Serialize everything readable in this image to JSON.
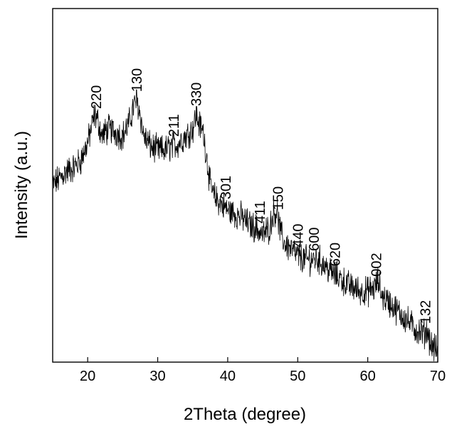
{
  "chart_data": {
    "type": "line",
    "title": "",
    "xlabel": "2Theta (degree)",
    "ylabel": "Intensity (a.u.)",
    "xlim": [
      15,
      70
    ],
    "ylim": [
      0,
      100
    ],
    "x_ticks": [
      20,
      30,
      40,
      50,
      60,
      70
    ],
    "y_ticks": [],
    "grid": false,
    "legend": "none",
    "colors": {
      "line": "#000000",
      "frame": "#000000"
    },
    "series": [
      {
        "values_note": "",
        "x": [
          15,
          16,
          17,
          18,
          19,
          20,
          20.5,
          21,
          21.5,
          22,
          23,
          24,
          25,
          26,
          26.5,
          27,
          27.5,
          28,
          29,
          30,
          31,
          32,
          33,
          34,
          35,
          35.5,
          36,
          36.5,
          37,
          37.5,
          38,
          39,
          40,
          41,
          42,
          43,
          44,
          45,
          46,
          46.5,
          47,
          47.5,
          48,
          49,
          50,
          51,
          52,
          53,
          54,
          55,
          56,
          57,
          58,
          59,
          60,
          61,
          61.5,
          62,
          63,
          64,
          65,
          66,
          67,
          68,
          68.5,
          69,
          70
        ],
        "y": [
          50,
          52,
          54,
          55,
          57,
          62,
          66,
          70,
          68,
          64,
          66,
          65,
          64,
          68,
          72,
          74,
          70,
          64,
          61,
          60,
          60,
          61,
          62,
          64,
          66,
          70,
          67,
          65,
          58,
          50,
          47,
          45,
          43,
          42,
          41,
          39,
          38,
          36,
          38,
          42,
          43,
          37,
          34,
          32,
          30,
          29,
          29,
          29,
          27,
          25,
          24,
          22,
          21,
          20,
          20,
          21,
          23,
          19,
          17,
          15,
          13,
          11,
          9,
          8,
          9,
          5,
          3
        ]
      }
    ],
    "annotations": [
      {
        "text": "220",
        "x": 21.2
      },
      {
        "text": "130",
        "x": 27.0
      },
      {
        "text": "211",
        "x": 32.3
      },
      {
        "text": "330",
        "x": 35.5
      },
      {
        "text": "301",
        "x": 39.7
      },
      {
        "text": "411",
        "x": 44.6
      },
      {
        "text": "150",
        "x": 47.2
      },
      {
        "text": "440",
        "x": 50.0
      },
      {
        "text": "600",
        "x": 52.3
      },
      {
        "text": "620",
        "x": 55.3
      },
      {
        "text": "002",
        "x": 61.2
      },
      {
        "text": "132",
        "x": 68.2
      }
    ]
  }
}
